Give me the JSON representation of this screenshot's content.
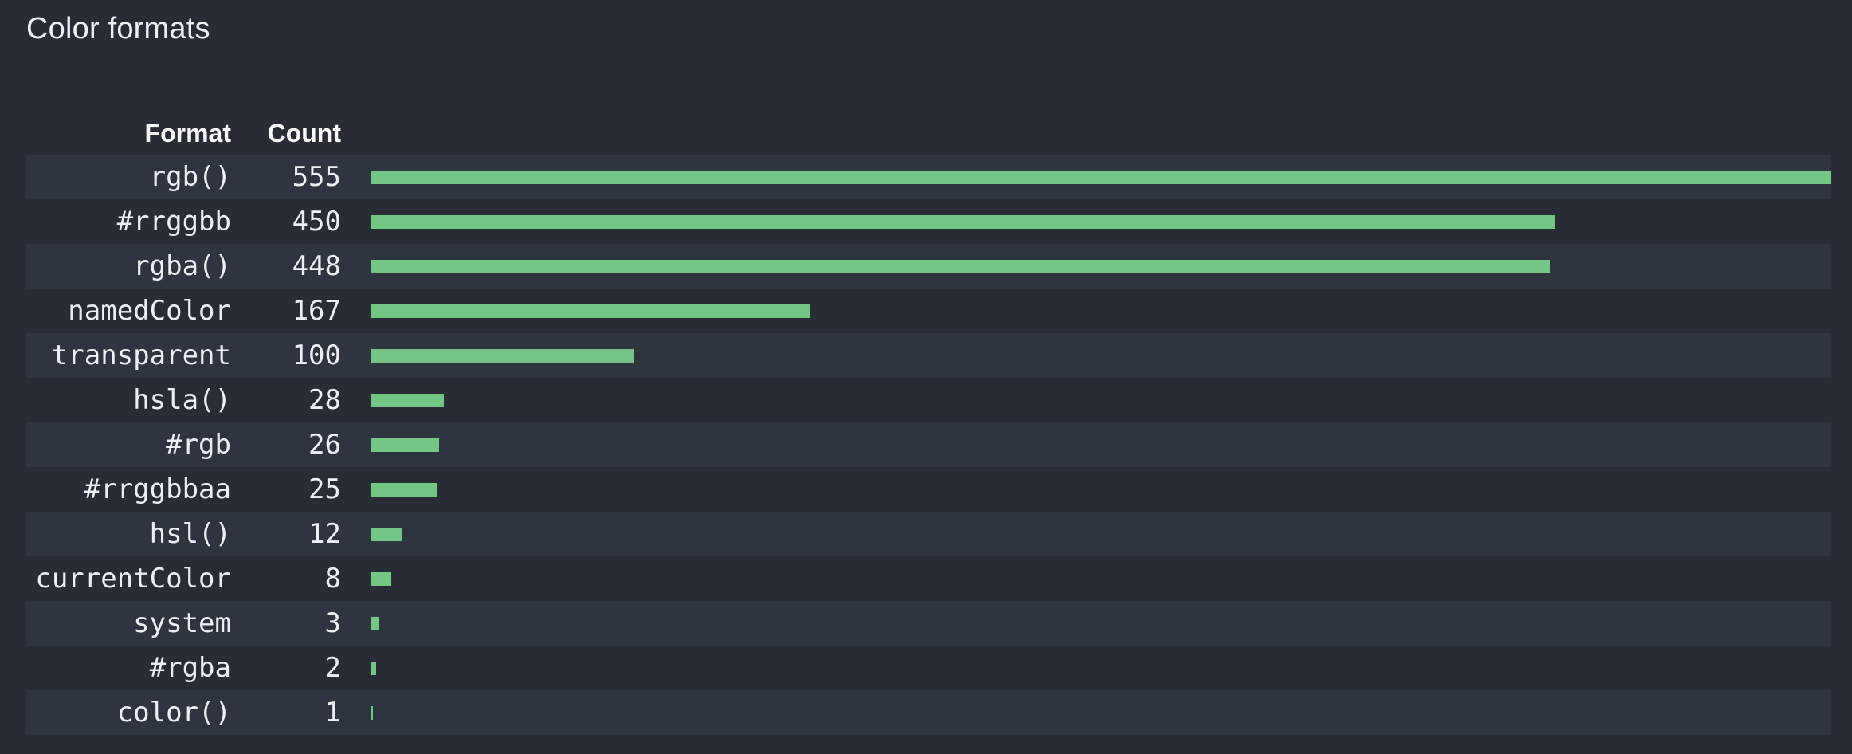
{
  "panel": {
    "title": "Color formats"
  },
  "table": {
    "header": {
      "format": "Format",
      "count": "Count"
    }
  },
  "colors": {
    "background": "#282d35",
    "row_stripe": "#2f353e",
    "bar": "#73c684",
    "text": "#eceff3",
    "heading_text": "#f7f9fa"
  },
  "chart_data": {
    "type": "bar",
    "orientation": "horizontal",
    "title": "Color formats",
    "columns": [
      "Format",
      "Count"
    ],
    "categories": [
      "rgb()",
      "#rrggbb",
      "rgba()",
      "namedColor",
      "transparent",
      "hsla()",
      "#rgb",
      "#rrggbbaa",
      "hsl()",
      "currentColor",
      "system",
      "#rgba",
      "color()"
    ],
    "values": [
      555,
      450,
      448,
      167,
      100,
      28,
      26,
      25,
      12,
      8,
      3,
      2,
      1
    ],
    "x_max": 555,
    "grid": "off",
    "legend": "none",
    "bar_color": "#73c684"
  }
}
